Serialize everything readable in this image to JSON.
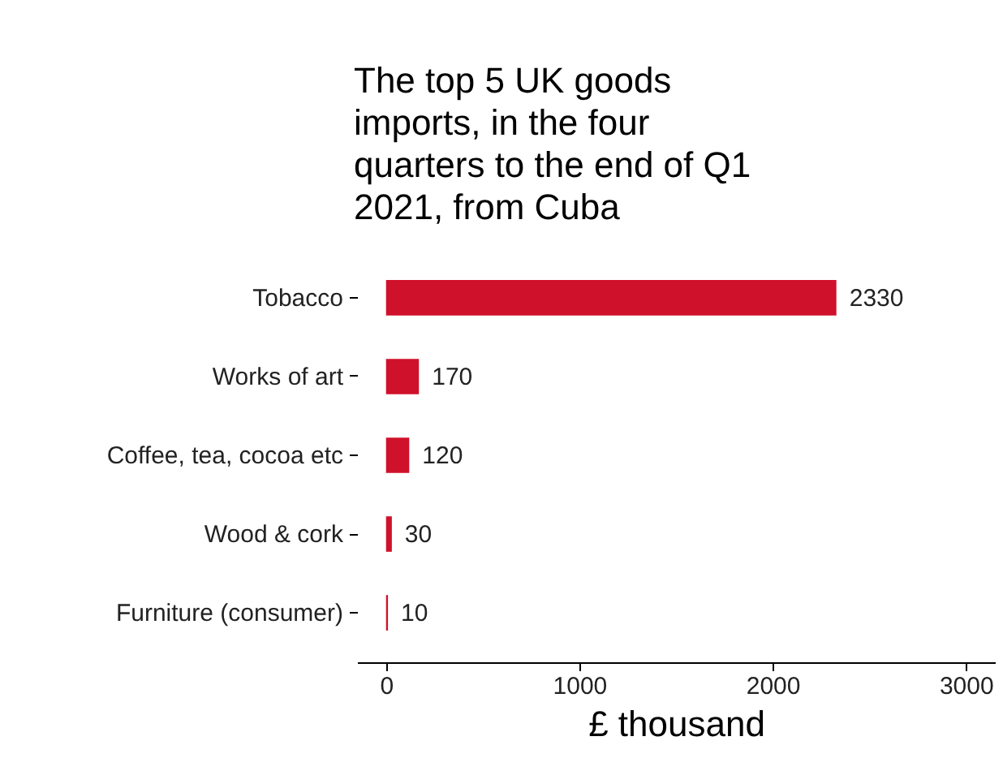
{
  "chart_data": {
    "type": "bar",
    "orientation": "horizontal",
    "title": "The top 5 UK goods imports, in the four quarters to the end of Q1 2021, from Cuba",
    "categories": [
      "Tobacco",
      "Works of art",
      "Coffee, tea, cocoa etc",
      "Wood & cork",
      "Furniture (consumer)"
    ],
    "values": [
      2330,
      170,
      120,
      30,
      10
    ],
    "color": "#d0112b",
    "xlabel": "£ thousand",
    "xlim": [
      -150,
      3150
    ],
    "xticks": [
      0,
      1000,
      2000,
      3000
    ],
    "data_labels": true,
    "grid": false
  }
}
